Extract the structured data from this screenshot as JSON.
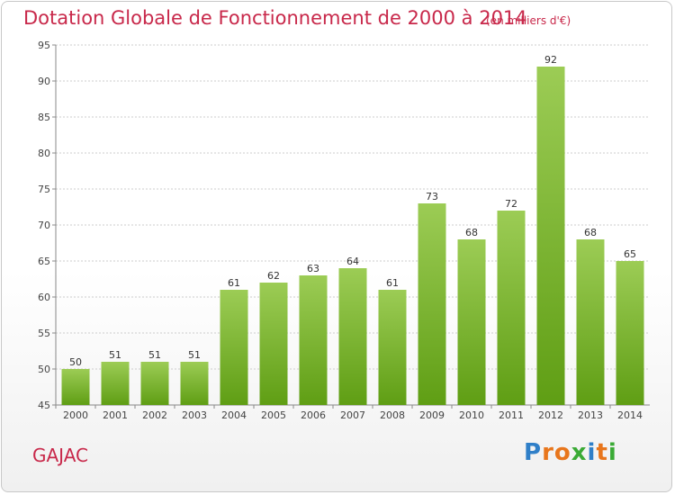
{
  "header": {
    "title": "Dotation Globale de Fonctionnement de 2000 à 2014",
    "subtitle": "(en milliers d'€)"
  },
  "footer": {
    "commune": "GAJAC",
    "logo": "Proxiti"
  },
  "colors": {
    "bar_top": "#9ccc55",
    "bar_bottom": "#5f9e14",
    "title": "#c8284a",
    "grid": "#cccccc"
  },
  "chart_data": {
    "type": "bar",
    "title": "Dotation Globale de Fonctionnement de 2000 à 2014",
    "subtitle": "(en milliers d'€)",
    "xlabel": "",
    "ylabel": "",
    "categories": [
      "2000",
      "2001",
      "2002",
      "2003",
      "2004",
      "2005",
      "2006",
      "2007",
      "2008",
      "2009",
      "2010",
      "2011",
      "2012",
      "2013",
      "2014"
    ],
    "values": [
      50,
      51,
      51,
      51,
      61,
      62,
      63,
      64,
      61,
      73,
      68,
      72,
      92,
      68,
      65
    ],
    "ylim": [
      45,
      95
    ],
    "yticks": [
      45,
      50,
      55,
      60,
      65,
      70,
      75,
      80,
      85,
      90,
      95
    ],
    "grid": true,
    "data_labels": true
  }
}
